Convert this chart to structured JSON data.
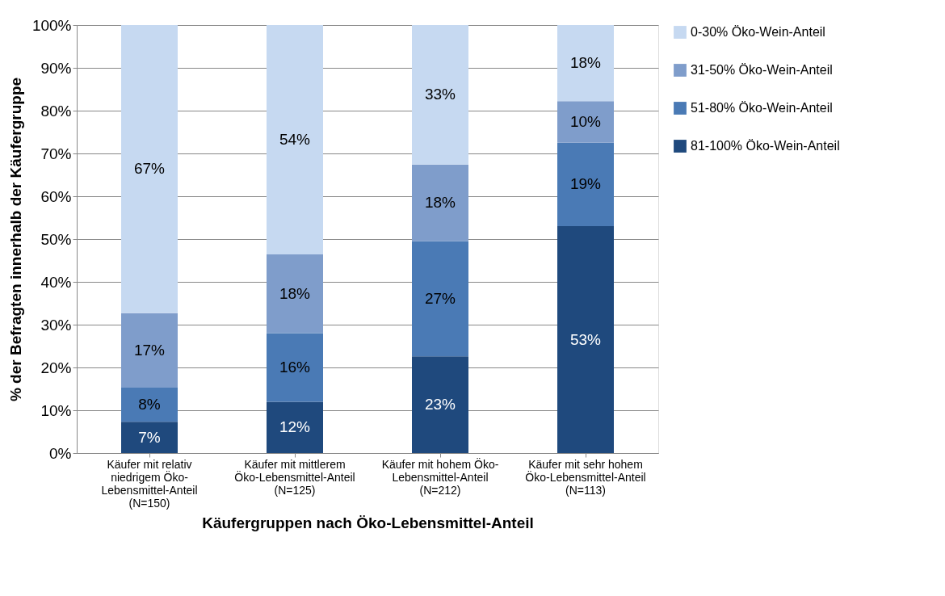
{
  "chart_data": {
    "type": "bar",
    "stacked": true,
    "xlabel": "Käufergruppen nach Öko-Lebensmittel-Anteil",
    "ylabel": "% der Befragten innerhalb der Käufergruppe",
    "categories": [
      "Käufer mit relativ niedrigem Öko-Lebensmittel-Anteil (N=150)",
      "Käufer mit mittlerem Öko-Lebensmittel-Anteil (N=125)",
      "Käufer mit hohem Öko-Lebensmittel-Anteil (N=212)",
      "Käufer mit sehr hohem Öko-Lebensmittel-Anteil (N=113)"
    ],
    "series": [
      {
        "name": "81-100% Öko-Wein-Anteil",
        "color": "#1f497d",
        "values": [
          7.3,
          12,
          22.6,
          53
        ],
        "value_labels": [
          "7%",
          "12%",
          "23%",
          "53%"
        ]
      },
      {
        "name": "51-80% Öko-Wein-Anteil",
        "color": "#4a7ab5",
        "values": [
          8,
          16,
          26.9,
          19.5
        ],
        "value_labels": [
          "8%",
          "16%",
          "27%",
          "19%"
        ]
      },
      {
        "name": "31-50% Öko-Wein-Anteil",
        "color": "#7f9dcb",
        "values": [
          17.4,
          18.4,
          17.9,
          9.7
        ],
        "value_labels": [
          "17%",
          "18%",
          "18%",
          "10%"
        ]
      },
      {
        "name": "0-30% Öko-Wein-Anteil",
        "color": "#c6d9f1",
        "values": [
          67.3,
          53.6,
          32.6,
          17.8
        ],
        "value_labels": [
          "67%",
          "54%",
          "33%",
          "18%"
        ]
      }
    ],
    "ylim": [
      0,
      100
    ],
    "yticks": [
      {
        "value": 0,
        "label": "0%"
      },
      {
        "value": 10,
        "label": "10%"
      },
      {
        "value": 20,
        "label": "20%"
      },
      {
        "value": 30,
        "label": "30%"
      },
      {
        "value": 40,
        "label": "40%"
      },
      {
        "value": 50,
        "label": "50%"
      },
      {
        "value": 60,
        "label": "60%"
      },
      {
        "value": 70,
        "label": "70%"
      },
      {
        "value": 80,
        "label": "80%"
      },
      {
        "value": 90,
        "label": "90%"
      },
      {
        "value": 100,
        "label": "100%"
      }
    ],
    "grid": "y",
    "legend": "right"
  }
}
